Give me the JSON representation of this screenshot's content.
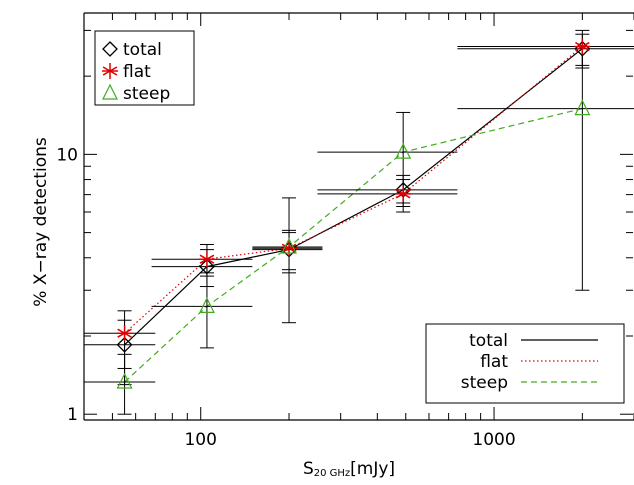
{
  "chart_data": {
    "type": "scatter",
    "xscale": "log",
    "yscale": "log",
    "xlim": [
      40,
      3000
    ],
    "ylim": [
      0.95,
      35
    ],
    "x_ticks": [
      100,
      1000
    ],
    "x_tick_labels": [
      "100",
      "1000"
    ],
    "y_ticks": [
      1,
      10
    ],
    "y_tick_labels": [
      "1",
      "10"
    ],
    "ylabel": "% X−ray detections",
    "xlabel_main": "S",
    "xlabel_sub": "20 GHz",
    "xlabel_unit": "[mJy]",
    "grid": false,
    "series": [
      {
        "name": "total",
        "marker": "diamond",
        "line": "solid",
        "color": "#000000",
        "points": [
          {
            "x": 55,
            "y": 1.85,
            "xlo": 40,
            "xhi": 70,
            "ylo": 1.3,
            "yhi": 2.3
          },
          {
            "x": 105,
            "y": 3.7,
            "xlo": 68,
            "xhi": 150,
            "ylo": 3.1,
            "yhi": 4.3
          },
          {
            "x": 200,
            "y": 4.3,
            "xlo": 150,
            "xhi": 260,
            "ylo": 3.5,
            "yhi": 5.0
          },
          {
            "x": 490,
            "y": 7.3,
            "xlo": 250,
            "xhi": 750,
            "ylo": 6.3,
            "yhi": 8.3
          },
          {
            "x": 2000,
            "y": 25.5,
            "xlo": 750,
            "xhi": 3000,
            "ylo": 21.5,
            "yhi": 29.0
          }
        ]
      },
      {
        "name": "flat",
        "marker": "asterisk",
        "line": "dotted",
        "color": "#dd0000",
        "points": [
          {
            "x": 55,
            "y": 2.05,
            "xlo": 40,
            "xhi": 70,
            "ylo": 1.5,
            "yhi": 2.5
          },
          {
            "x": 105,
            "y": 3.95,
            "xlo": 68,
            "xhi": 150,
            "ylo": 3.4,
            "yhi": 4.5
          },
          {
            "x": 200,
            "y": 4.35,
            "xlo": 150,
            "xhi": 260,
            "ylo": 3.6,
            "yhi": 5.1
          },
          {
            "x": 490,
            "y": 7.05,
            "xlo": 250,
            "xhi": 750,
            "ylo": 6.0,
            "yhi": 8.0
          },
          {
            "x": 2000,
            "y": 26.0,
            "xlo": 750,
            "xhi": 3000,
            "ylo": 22.0,
            "yhi": 30.0
          }
        ]
      },
      {
        "name": "steep",
        "marker": "triangle",
        "line": "dashed",
        "color": "#44aa22",
        "points": [
          {
            "x": 55,
            "y": 1.33,
            "xlo": 40,
            "xhi": 70,
            "ylo": 1.0,
            "yhi": 1.7
          },
          {
            "x": 105,
            "y": 2.6,
            "xlo": 68,
            "xhi": 150,
            "ylo": 1.8,
            "yhi": 3.5
          },
          {
            "x": 200,
            "y": 4.4,
            "xlo": 150,
            "xhi": 260,
            "ylo": 2.25,
            "yhi": 6.8
          },
          {
            "x": 490,
            "y": 10.2,
            "xlo": 250,
            "xhi": 750,
            "ylo": 6.5,
            "yhi": 14.5
          },
          {
            "x": 2000,
            "y": 15.0,
            "xlo": 750,
            "xhi": 3000,
            "ylo": 3.0,
            "yhi": 26.0
          }
        ]
      }
    ],
    "legend_markers": {
      "placement": "top-left",
      "entries": [
        "total",
        "flat",
        "steep"
      ]
    },
    "legend_lines": {
      "placement": "bottom-right",
      "entries": [
        "total",
        "flat",
        "steep"
      ]
    }
  }
}
